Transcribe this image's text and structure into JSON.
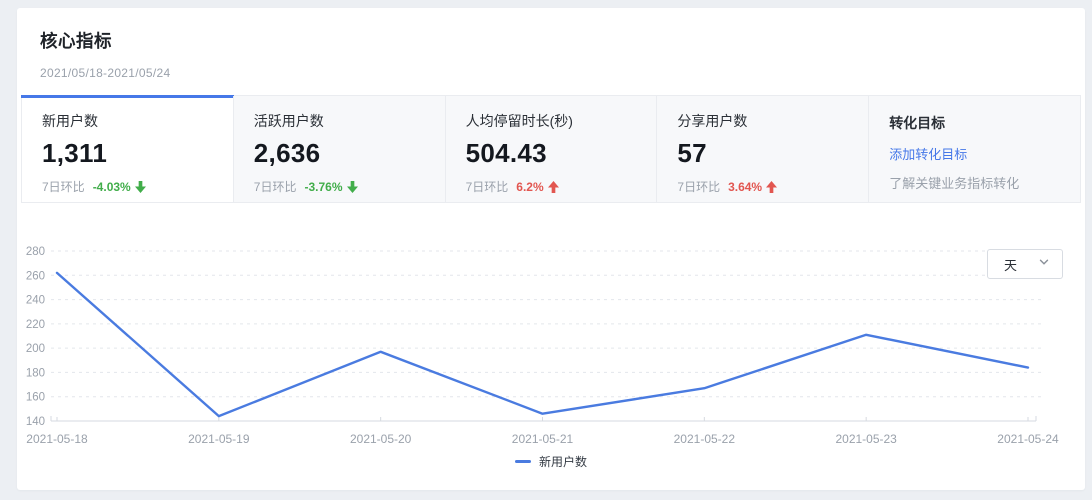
{
  "page": {
    "title": "核心指标",
    "date_range": "2021/05/18-2021/05/24"
  },
  "cards": [
    {
      "label": "新用户数",
      "value": "1,311",
      "compare_label": "7日环比",
      "change": "-4.03%",
      "trend": "down",
      "trend_icon": "arrow-down"
    },
    {
      "label": "活跃用户数",
      "value": "2,636",
      "compare_label": "7日环比",
      "change": "-3.76%",
      "trend": "down",
      "trend_icon": "arrow-down"
    },
    {
      "label": "人均停留时长(秒)",
      "value": "504.43",
      "compare_label": "7日环比",
      "change": "6.2%",
      "trend": "up",
      "trend_icon": "arrow-up"
    },
    {
      "label": "分享用户数",
      "value": "57",
      "compare_label": "7日环比",
      "change": "3.64%",
      "trend": "up",
      "trend_icon": "arrow-up"
    }
  ],
  "goal_card": {
    "title": "转化目标",
    "link_label": "添加转化目标",
    "hint": "了解关键业务指标转化"
  },
  "controls": {
    "period": "天",
    "period_icon": "chevron-down"
  },
  "colors": {
    "accent": "#4678e8",
    "line": "#4a7be0",
    "up": "#e25650",
    "down": "#41ad4a"
  },
  "chart_data": {
    "type": "line",
    "categories": [
      "2021-05-18",
      "2021-05-19",
      "2021-05-20",
      "2021-05-21",
      "2021-05-22",
      "2021-05-23",
      "2021-05-24"
    ],
    "series": [
      {
        "name": "新用户数",
        "values": [
          262,
          144,
          197,
          146,
          167,
          211,
          184
        ],
        "color": "#4a7be0"
      }
    ],
    "ylim": [
      140,
      280
    ],
    "ytick_step": 20,
    "grid": "dashed-horizontal",
    "legend_position": "bottom"
  }
}
